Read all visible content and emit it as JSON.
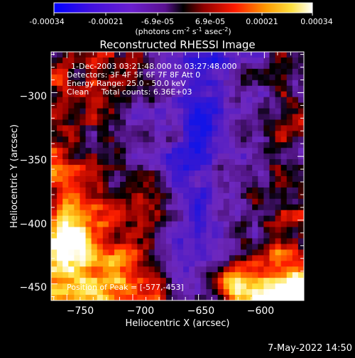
{
  "chart_data": {
    "type": "heatmap",
    "title": "Reconstructed RHESSI Image",
    "xlabel": "Heliocentric X (arcsec)",
    "ylabel": "Heliocentric Y (arcsec)",
    "xlim": [
      -762,
      -570
    ],
    "ylim": [
      -463,
      -268
    ],
    "x_ticks": [
      -750,
      -700,
      -650,
      -600
    ],
    "x_tick_labels": [
      "−750",
      "−700",
      "−650",
      "−600"
    ],
    "y_ticks": [
      -450,
      -400,
      -350,
      -300
    ],
    "y_tick_labels": [
      "−450",
      "−400",
      "−350",
      "−300"
    ],
    "info_lines": [
      "1-Dec-2003 03:21:48.000 to 03:27:48.000",
      "Detectors: 3F 4F 5F 6F 7F 8F Att 0",
      "Energy Range: 25.0 - 50.0 keV",
      "Clean     Total counts: 6.36E+03"
    ],
    "peak_label": "Position of Peak = [-577,-453]",
    "peak_position": [
      -577,
      -453
    ],
    "colorbar": {
      "tick_values": [
        -0.00034,
        -0.00021,
        -6.9e-05,
        6.9e-05,
        0.00021,
        0.00034
      ],
      "tick_labels": [
        "-0.00034",
        "-0.00021",
        "-6.9e-05",
        "6.9e-05",
        "0.00021",
        "0.00034"
      ],
      "unit_prefix": "(photons cm",
      "unit_sup1": "-2",
      "unit_mid1": " s",
      "unit_sup2": "-1",
      "unit_mid2": " asec",
      "unit_sup3": "-2",
      "unit_suffix": ")",
      "colors": [
        "#0000ff",
        "#5a16b4",
        "#7a2cc8",
        "#000000",
        "#c00000",
        "#ff5a00",
        "#ffd23c",
        "#ffffff"
      ]
    },
    "grid_rows": 25,
    "grid_cols": 23,
    "intensity_rows": [
      "3221100000001000000113223",
      "3221100000001000000113223"
    ]
  },
  "footer": {
    "timestamp": "7-May-2022 14:50"
  }
}
